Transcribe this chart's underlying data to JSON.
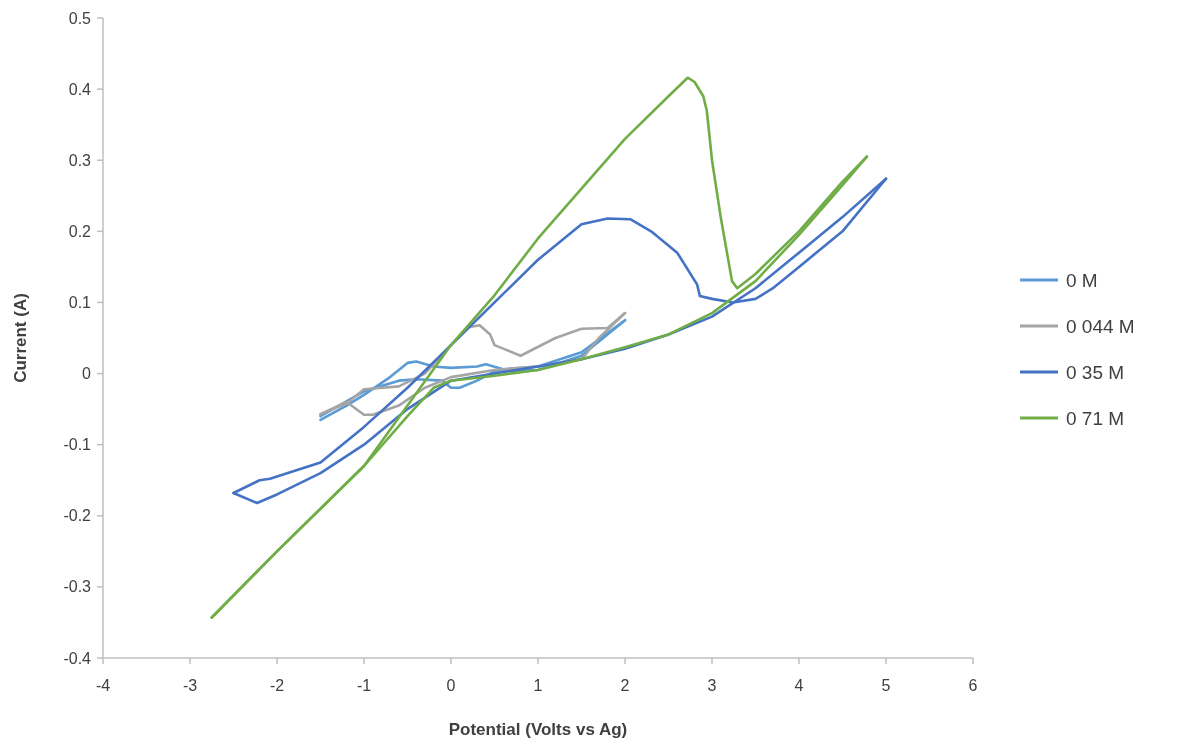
{
  "chart_data": {
    "type": "line",
    "xlabel": "Potential (Volts vs Ag)",
    "ylabel": "Current (A)",
    "xlim": [
      -4,
      6
    ],
    "xticks": [
      -4,
      -3,
      -2,
      -1,
      0,
      1,
      2,
      3,
      4,
      5,
      6
    ],
    "ylim": [
      -0.4,
      0.5
    ],
    "yticks": [
      -0.4,
      -0.3,
      -0.2,
      -0.1,
      0,
      0.1,
      0.2,
      0.3,
      0.4,
      0.5
    ],
    "grid": false,
    "legend": "right",
    "marker": "none",
    "line_style": "solid",
    "series": [
      {
        "name": "0 M",
        "color": "#5b9bd5",
        "x": [
          -1.5,
          -1.2,
          -1,
          -0.7,
          -0.5,
          -0.4,
          -0.2,
          0,
          0.3,
          0.4,
          0.6,
          1,
          1.5,
          2
        ],
        "values": [
          -0.065,
          -0.045,
          -0.03,
          -0.005,
          0.015,
          0.017,
          0.01,
          0.008,
          0.01,
          0.013,
          0.006,
          0.01,
          0.03,
          0.075
        ]
      },
      {
        "color": "#5b9bd5",
        "x": [
          2,
          1.7,
          1.5,
          1,
          0.5,
          0.3,
          0.1,
          0,
          -0.1,
          -0.4,
          -0.6,
          -1,
          -1.5
        ],
        "values": [
          0.075,
          0.045,
          0.025,
          0.005,
          0.003,
          -0.01,
          -0.02,
          -0.02,
          -0.01,
          -0.008,
          -0.01,
          -0.025,
          -0.06
        ]
      },
      {
        "name": "0 044 M",
        "color": "#a5a5a5",
        "x": [
          -1.5,
          -1.2,
          -1,
          -0.6,
          -0.3,
          0,
          0.2,
          0.33,
          0.45,
          0.5,
          0.6,
          0.8,
          1.2,
          1.5,
          1.8,
          2
        ],
        "values": [
          -0.057,
          -0.042,
          -0.022,
          -0.018,
          0,
          0.04,
          0.065,
          0.068,
          0.055,
          0.04,
          0.035,
          0.025,
          0.05,
          0.063,
          0.064,
          0.085
        ]
      },
      {
        "color": "#a5a5a5",
        "x": [
          2,
          1.7,
          1.5,
          1,
          0.5,
          0,
          -0.3,
          -0.6,
          -0.9,
          -1,
          -1.2,
          -1.5
        ],
        "values": [
          0.085,
          0.05,
          0.02,
          0.01,
          0.005,
          -0.005,
          -0.02,
          -0.045,
          -0.058,
          -0.058,
          -0.04,
          -0.057
        ]
      },
      {
        "name": "0 35 M",
        "color": "#4472c4",
        "x": [
          -2.5,
          -2.23,
          -2,
          -1.5,
          -1,
          -0.5,
          0,
          0.5,
          1,
          1.5,
          2,
          2.5,
          3,
          3.5,
          4,
          4.5,
          5
        ],
        "values": [
          -0.168,
          -0.182,
          -0.17,
          -0.14,
          -0.1,
          -0.05,
          -0.01,
          0,
          0.01,
          0.02,
          0.035,
          0.055,
          0.08,
          0.12,
          0.17,
          0.22,
          0.274
        ]
      },
      {
        "color": "#4472c4",
        "x": [
          5,
          4.5,
          4,
          3.7,
          3.5,
          3.24,
          3.0,
          2.86,
          2.83,
          2.6,
          2.3,
          2.06,
          1.8,
          1.5,
          1,
          0.5,
          0,
          -0.5,
          -1,
          -1.5,
          -2.08,
          -2.2,
          -2.5
        ],
        "values": [
          0.274,
          0.2,
          0.15,
          0.12,
          0.105,
          0.1,
          0.105,
          0.109,
          0.125,
          0.17,
          0.2,
          0.217,
          0.218,
          0.21,
          0.16,
          0.1,
          0.04,
          -0.02,
          -0.075,
          -0.125,
          -0.148,
          -0.15,
          -0.168
        ]
      },
      {
        "name": "0 71 M",
        "color": "#70ad47",
        "x": [
          -2.75,
          -2,
          -1,
          0,
          0.5,
          1,
          1.5,
          2,
          2.5,
          2.72,
          2.8,
          2.9,
          2.94,
          3.0,
          3.1,
          3.23,
          3.29,
          3.5,
          4,
          4.5,
          4.78
        ],
        "values": [
          -0.343,
          -0.25,
          -0.13,
          0.04,
          0.11,
          0.19,
          0.26,
          0.33,
          0.39,
          0.416,
          0.41,
          0.39,
          0.37,
          0.3,
          0.22,
          0.13,
          0.12,
          0.14,
          0.2,
          0.27,
          0.305
        ]
      },
      {
        "color": "#70ad47",
        "x": [
          4.78,
          4.5,
          4,
          3.5,
          3,
          2.5,
          2,
          1.5,
          1,
          0.5,
          0,
          -0.2,
          -0.5,
          -1,
          -2,
          -2.75
        ],
        "values": [
          0.305,
          0.265,
          0.195,
          0.13,
          0.085,
          0.055,
          0.037,
          0.02,
          0.005,
          -0.003,
          -0.01,
          -0.02,
          -0.06,
          -0.13,
          -0.25,
          -0.343
        ]
      }
    ]
  }
}
